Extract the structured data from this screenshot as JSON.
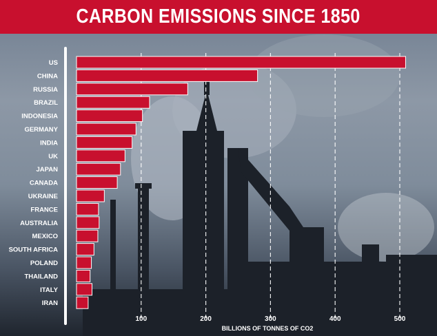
{
  "title": "CARBON EMISSIONS SINCE 1850",
  "colors": {
    "header": "#c8102e",
    "bar": "#c8102e",
    "bar_edge": "#ffffff",
    "text": "#ffffff",
    "grid": "#ffffff"
  },
  "chart_data": {
    "type": "bar",
    "orientation": "horizontal",
    "title": "CARBON EMISSIONS SINCE 1850",
    "xlabel": "BILLIONS OF TONNES OF CO2",
    "ylabel": "",
    "xlim": [
      0,
      520
    ],
    "xticks": [
      100,
      200,
      300,
      400,
      500
    ],
    "grid": "vertical dashed",
    "categories": [
      "US",
      "CHINA",
      "RUSSIA",
      "BRAZIL",
      "INDONESIA",
      "GERMANY",
      "INDIA",
      "UK",
      "JAPAN",
      "CANADA",
      "UKRAINE",
      "FRANCE",
      "AUSTRALIA",
      "MEXICO",
      "SOUTH AFRICA",
      "POLAND",
      "THAILAND",
      "ITALY",
      "IRAN"
    ],
    "values": [
      509,
      280,
      172,
      113,
      102,
      92,
      86,
      75,
      68,
      63,
      43,
      34,
      35,
      33,
      27,
      23,
      21,
      24,
      18
    ]
  }
}
